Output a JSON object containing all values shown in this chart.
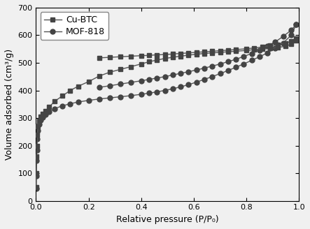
{
  "title": "",
  "xlabel": "Relative pressure (P/P₀)",
  "ylabel": "Volume adsorbed (cm³/g)",
  "xlim": [
    0,
    1.0
  ],
  "ylim": [
    0,
    700
  ],
  "yticks": [
    0,
    100,
    200,
    300,
    400,
    500,
    600,
    700
  ],
  "xticks": [
    0.0,
    0.2,
    0.4,
    0.6,
    0.8,
    1.0
  ],
  "background_color": "#f0f0f0",
  "cu_btc_ads_x": [
    0.0005,
    0.001,
    0.002,
    0.003,
    0.005,
    0.008,
    0.012,
    0.018,
    0.025,
    0.035,
    0.05,
    0.07,
    0.1,
    0.13,
    0.16,
    0.2,
    0.24,
    0.28,
    0.32,
    0.36,
    0.4,
    0.43,
    0.46,
    0.49,
    0.52,
    0.55,
    0.58,
    0.61,
    0.64,
    0.67,
    0.7,
    0.73,
    0.76,
    0.8,
    0.83,
    0.86,
    0.89,
    0.92,
    0.95,
    0.97,
    0.99
  ],
  "cu_btc_ads_y": [
    50,
    100,
    160,
    200,
    240,
    270,
    290,
    305,
    315,
    325,
    340,
    360,
    380,
    400,
    415,
    432,
    452,
    466,
    476,
    486,
    496,
    504,
    510,
    516,
    520,
    524,
    528,
    531,
    534,
    536,
    538,
    540,
    542,
    545,
    548,
    550,
    552,
    556,
    560,
    568,
    580
  ],
  "cu_btc_des_x": [
    0.99,
    0.97,
    0.95,
    0.92,
    0.89,
    0.86,
    0.83,
    0.8,
    0.76,
    0.73,
    0.7,
    0.67,
    0.64,
    0.61,
    0.58,
    0.55,
    0.52,
    0.49,
    0.46,
    0.43,
    0.4,
    0.36,
    0.32,
    0.28,
    0.24
  ],
  "cu_btc_des_y": [
    588,
    578,
    572,
    566,
    562,
    557,
    554,
    551,
    548,
    546,
    544,
    542,
    540,
    538,
    536,
    534,
    532,
    530,
    529,
    527,
    526,
    524,
    522,
    520,
    518
  ],
  "mof818_ads_x": [
    0.0005,
    0.001,
    0.002,
    0.003,
    0.005,
    0.008,
    0.012,
    0.018,
    0.025,
    0.035,
    0.05,
    0.07,
    0.1,
    0.13,
    0.16,
    0.2,
    0.24,
    0.28,
    0.32,
    0.36,
    0.4,
    0.43,
    0.46,
    0.49,
    0.52,
    0.55,
    0.58,
    0.61,
    0.64,
    0.67,
    0.7,
    0.73,
    0.76,
    0.79,
    0.82,
    0.85,
    0.88,
    0.91,
    0.94,
    0.97,
    0.99
  ],
  "mof818_ads_y": [
    45,
    90,
    145,
    185,
    225,
    255,
    278,
    292,
    302,
    312,
    322,
    334,
    344,
    352,
    358,
    364,
    369,
    373,
    377,
    381,
    386,
    390,
    395,
    400,
    406,
    413,
    421,
    430,
    440,
    450,
    461,
    472,
    484,
    496,
    509,
    522,
    536,
    552,
    572,
    600,
    640
  ],
  "mof818_des_x": [
    0.99,
    0.97,
    0.94,
    0.91,
    0.88,
    0.85,
    0.82,
    0.79,
    0.76,
    0.73,
    0.7,
    0.67,
    0.64,
    0.61,
    0.58,
    0.55,
    0.52,
    0.49,
    0.46,
    0.43,
    0.4,
    0.36,
    0.32,
    0.28,
    0.24
  ],
  "mof818_des_y": [
    640,
    618,
    596,
    576,
    560,
    546,
    534,
    523,
    513,
    504,
    496,
    488,
    481,
    474,
    468,
    462,
    456,
    450,
    445,
    440,
    435,
    429,
    423,
    417,
    411
  ],
  "line_color": "#555555",
  "marker_color": "#444444",
  "linewidth": 1.0,
  "markersize_square": 4,
  "markersize_circle": 5,
  "legend_loc": "upper left",
  "legend_fontsize": 9
}
